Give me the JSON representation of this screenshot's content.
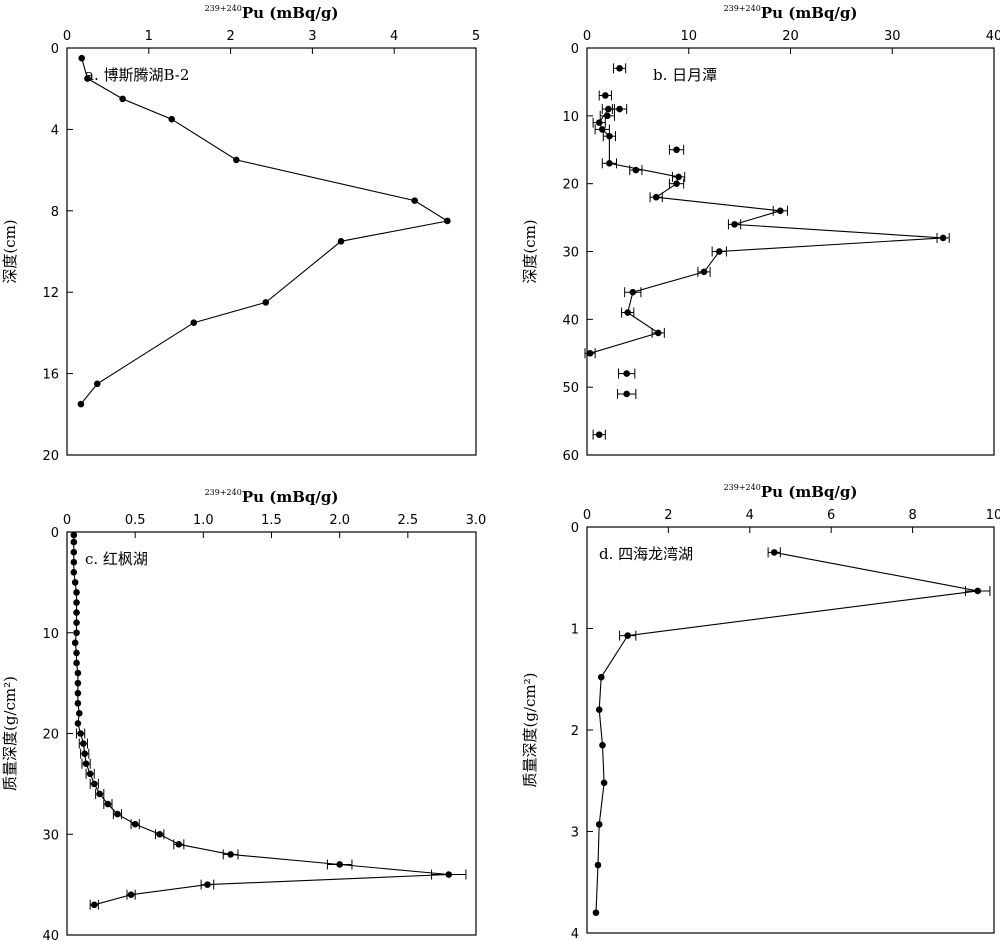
{
  "chart_data": [
    {
      "type": "line",
      "title": "a. 博斯腾湖B-2",
      "xlabel_sup": "239+240",
      "xlabel_main": "Pu (mBq/g)",
      "ylabel": "深度(cm)",
      "xlim": [
        0,
        5
      ],
      "ylim": [
        0,
        20
      ],
      "xticks": [
        0,
        1,
        2,
        3,
        4,
        5
      ],
      "yticks": [
        0,
        4,
        8,
        12,
        16,
        20
      ],
      "series": [
        {
          "points": [
            {
              "x": 0.18,
              "y": 0.5
            },
            {
              "x": 0.25,
              "y": 1.5
            },
            {
              "x": 0.68,
              "y": 2.5
            },
            {
              "x": 1.28,
              "y": 3.5
            },
            {
              "x": 2.07,
              "y": 5.5
            },
            {
              "x": 4.25,
              "y": 7.5
            },
            {
              "x": 4.65,
              "y": 8.5
            },
            {
              "x": 3.35,
              "y": 9.5
            },
            {
              "x": 2.43,
              "y": 12.5
            },
            {
              "x": 1.55,
              "y": 13.5
            },
            {
              "x": 0.37,
              "y": 16.5
            },
            {
              "x": 0.17,
              "y": 17.5
            }
          ]
        }
      ]
    },
    {
      "type": "line",
      "title": "b. 日月潭",
      "xlabel_sup": "239+240",
      "xlabel_main": "Pu (mBq/g)",
      "ylabel": "深度(cm)",
      "xlim": [
        0,
        40
      ],
      "ylim": [
        0,
        60
      ],
      "xticks": [
        0,
        10,
        20,
        30,
        40
      ],
      "yticks": [
        0,
        10,
        20,
        30,
        40,
        50,
        60
      ],
      "series": [
        {
          "points": [
            {
              "x": 2.1,
              "y": 9
            },
            {
              "x": 1.2,
              "y": 11
            },
            {
              "x": 1.5,
              "y": 12
            },
            {
              "x": 2.2,
              "y": 13
            },
            {
              "x": 2.2,
              "y": 17
            },
            {
              "x": 9.0,
              "y": 19
            },
            {
              "x": 8.8,
              "y": 20
            },
            {
              "x": 6.8,
              "y": 22
            },
            {
              "x": 19.0,
              "y": 24
            },
            {
              "x": 14.5,
              "y": 26
            },
            {
              "x": 35.0,
              "y": 28
            },
            {
              "x": 13.0,
              "y": 30
            },
            {
              "x": 11.5,
              "y": 33
            },
            {
              "x": 4.5,
              "y": 36
            },
            {
              "x": 4.0,
              "y": 39
            },
            {
              "x": 7.0,
              "y": 42
            },
            {
              "x": 0.3,
              "y": 45
            }
          ]
        },
        {
          "points": [
            {
              "x": 3.2,
              "y": 3
            },
            {
              "x": 1.8,
              "y": 7
            },
            {
              "x": 3.2,
              "y": 9
            },
            {
              "x": 2.0,
              "y": 10
            },
            {
              "x": 8.8,
              "y": 15
            },
            {
              "x": 4.8,
              "y": 18
            },
            {
              "x": 3.9,
              "y": 48
            },
            {
              "x": 3.9,
              "y": 51
            },
            {
              "x": 1.2,
              "y": 57
            }
          ]
        }
      ]
    },
    {
      "type": "line",
      "title": "c. 红枫湖",
      "xlabel_sup": "239+240",
      "xlabel_main": "Pu (mBq/g)",
      "ylabel": "质量深度(g/cm²)",
      "xlim": [
        0,
        3.0
      ],
      "ylim": [
        0,
        40
      ],
      "xticks": [
        0,
        0.5,
        1.0,
        1.5,
        2.0,
        2.5,
        3.0
      ],
      "xtick_labels": [
        "0",
        "0.5",
        "1.0",
        "1.5",
        "2.0",
        "2.5",
        "3.0"
      ],
      "yticks": [
        0,
        10,
        20,
        30,
        40
      ],
      "series": [
        {
          "points": [
            {
              "x": 0.05,
              "y": 0.3
            },
            {
              "x": 0.05,
              "y": 1
            },
            {
              "x": 0.05,
              "y": 2
            },
            {
              "x": 0.05,
              "y": 3
            },
            {
              "x": 0.05,
              "y": 4
            },
            {
              "x": 0.06,
              "y": 5
            },
            {
              "x": 0.07,
              "y": 6
            },
            {
              "x": 0.07,
              "y": 7
            },
            {
              "x": 0.07,
              "y": 8
            },
            {
              "x": 0.07,
              "y": 9
            },
            {
              "x": 0.07,
              "y": 10
            },
            {
              "x": 0.06,
              "y": 11
            },
            {
              "x": 0.07,
              "y": 12
            },
            {
              "x": 0.07,
              "y": 13
            },
            {
              "x": 0.08,
              "y": 14
            },
            {
              "x": 0.08,
              "y": 15
            },
            {
              "x": 0.08,
              "y": 16
            },
            {
              "x": 0.08,
              "y": 17
            },
            {
              "x": 0.09,
              "y": 18
            },
            {
              "x": 0.08,
              "y": 19
            },
            {
              "x": 0.1,
              "y": 20
            },
            {
              "x": 0.12,
              "y": 21
            },
            {
              "x": 0.13,
              "y": 22
            },
            {
              "x": 0.14,
              "y": 23
            },
            {
              "x": 0.17,
              "y": 24
            },
            {
              "x": 0.2,
              "y": 25
            },
            {
              "x": 0.24,
              "y": 26
            },
            {
              "x": 0.3,
              "y": 27
            },
            {
              "x": 0.37,
              "y": 28
            },
            {
              "x": 0.5,
              "y": 29
            },
            {
              "x": 0.68,
              "y": 30
            },
            {
              "x": 0.82,
              "y": 31
            },
            {
              "x": 1.2,
              "y": 32
            },
            {
              "x": 2.0,
              "y": 33
            },
            {
              "x": 2.8,
              "y": 34
            },
            {
              "x": 1.03,
              "y": 35
            },
            {
              "x": 0.47,
              "y": 36
            },
            {
              "x": 0.2,
              "y": 37
            }
          ]
        }
      ]
    },
    {
      "type": "line",
      "title": "d. 四海龙湾湖",
      "xlabel_sup": "239+240",
      "xlabel_main": "Pu (mBq/g)",
      "ylabel": "质量深度(g/cm²)",
      "xlim": [
        0,
        10
      ],
      "ylim": [
        0,
        4
      ],
      "xticks": [
        0,
        2,
        4,
        6,
        8,
        10
      ],
      "yticks": [
        0,
        1,
        2,
        3,
        4
      ],
      "series": [
        {
          "points": [
            {
              "x": 4.6,
              "y": 0.25
            },
            {
              "x": 9.6,
              "y": 0.63
            },
            {
              "x": 1.0,
              "y": 1.07
            },
            {
              "x": 0.35,
              "y": 1.48
            },
            {
              "x": 0.3,
              "y": 1.8
            },
            {
              "x": 0.38,
              "y": 2.15
            },
            {
              "x": 0.42,
              "y": 2.52
            },
            {
              "x": 0.3,
              "y": 2.93
            },
            {
              "x": 0.27,
              "y": 3.33
            },
            {
              "x": 0.22,
              "y": 3.8
            }
          ]
        }
      ]
    }
  ]
}
